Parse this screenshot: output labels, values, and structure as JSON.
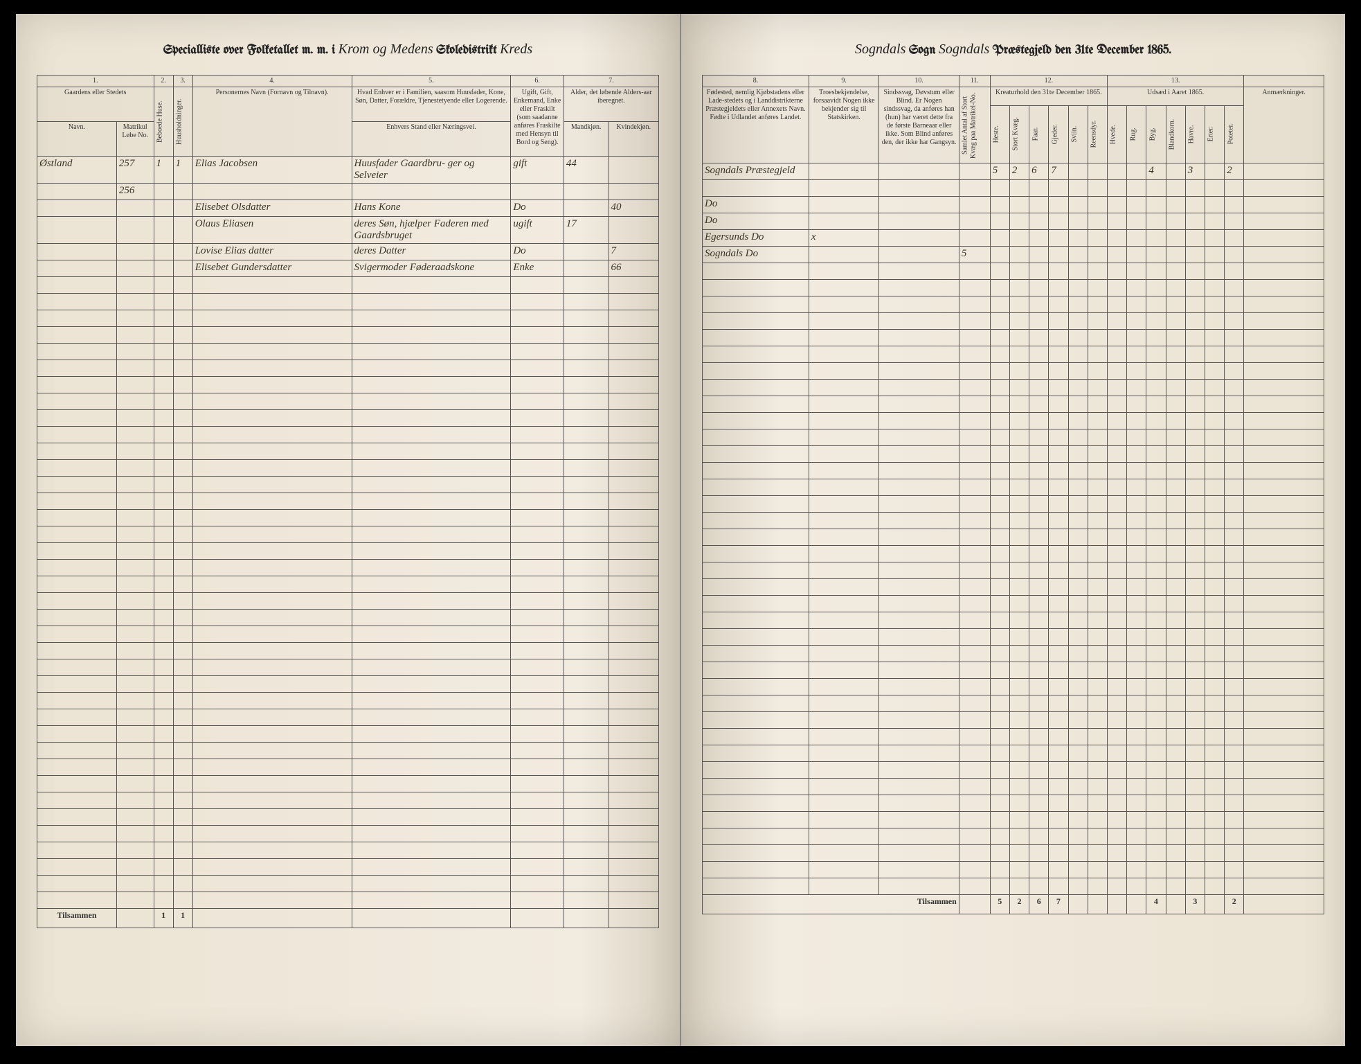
{
  "header": {
    "left_prefix": "Specialliste over Folketallet m. m. i",
    "district_script": "Krom og Medens",
    "district_label": "Skoledistrikt",
    "kreds_script": "Kreds",
    "sogn_script": "Sogndals",
    "sogn_label": "Sogn",
    "prestegjeld_script": "Sogndals",
    "prestegjeld_label": "Præstegjeld den 31te December 1865."
  },
  "columns_left": {
    "nums": [
      "1.",
      "2.",
      "3.",
      "4.",
      "5.",
      "6.",
      "7."
    ],
    "c1a": "Gaardens eller Stedets",
    "c1b": "Navn.",
    "c1c": "Matrikul Løbe No.",
    "c2": "Beboede Huse.",
    "c3": "Huusholdninger.",
    "c4": "Personernes Navn (Fornavn og Tilnavn).",
    "c5a": "Hvad Enhver er i Familien, saasom Huusfader, Kone, Søn, Datter, Forældre, Tjenestetyende eller Logerende.",
    "c5b": "Enhvers Stand eller Næringsvei.",
    "c6a": "Ugift, Gift, Enkemand, Enke eller Fraskilt (som saadanne anføres Fraskilte med Hensyn til Bord og Seng).",
    "c7a": "Alder, det løbende Alders-aar iberegnet.",
    "c7b": "Mandkjøn.",
    "c7c": "Kvindekjøn."
  },
  "columns_right": {
    "nums": [
      "8.",
      "9.",
      "10.",
      "11.",
      "12.",
      "13."
    ],
    "c8": "Fødested, nemlig Kjøbstadens eller Lade-stedets og i Landdistrikterne Præstegjeldets eller Annexets Navn. Fødte i Udlandet anføres Landet.",
    "c9": "Troesbekjendelse, forsaavidt Nogen ikke bekjender sig til Statskirken.",
    "c10": "Sindssvag, Døvstum eller Blind. Er Nogen sindssvag, da anføres han (hun) har været dette fra de første Barneaar eller ikke. Som Blind anføres den, der ikke har Gangsyn.",
    "c11": "Samlet Antal af Stort Kvæg paa Matrikel-No.",
    "c12": "Kreaturhold den 31te December 1865.",
    "c12_sub": [
      "Heste.",
      "Stort Kvæg.",
      "Faar.",
      "Gjeder.",
      "Sviin.",
      "Reensdyr."
    ],
    "c13": "Udsæd i Aaret 1865.",
    "c13_sub": [
      "Hvede.",
      "Rug.",
      "Byg.",
      "Blandkorn.",
      "Havre.",
      "Erter.",
      "Poteter."
    ],
    "anm": "Anmærkninger."
  },
  "rows": [
    {
      "gaard": "Østland",
      "matr": "257",
      "hus": "1",
      "hush": "1",
      "navn": "Elias Jacobsen",
      "familie": "Huusfader Gaardbru-",
      "stand": "ger og Selveier",
      "civil": "gift",
      "m": "44",
      "k": "",
      "fodested": "Sogndals Præstegjeld",
      "c11": "",
      "heste": "5",
      "kvag": "2",
      "faar": "6",
      "gjed": "7",
      "byg": "4",
      "havre": "3",
      "poteter": "2"
    },
    {
      "gaard": "",
      "matr": "256",
      "hus": "",
      "hush": "",
      "navn": "",
      "familie": "",
      "stand": "",
      "civil": "",
      "m": "",
      "k": "",
      "fodested": ""
    },
    {
      "navn": "Elisebet Olsdatter",
      "familie": "Hans Kone",
      "stand": "",
      "civil": "Do",
      "m": "",
      "k": "40",
      "fodested": "Do"
    },
    {
      "navn": "Olaus Eliasen",
      "familie": "deres Søn, hjælper",
      "stand": "Faderen med Gaardsbruget",
      "civil": "ugift",
      "m": "17",
      "k": "",
      "fodested": "Do"
    },
    {
      "navn": "Lovise Elias datter",
      "familie": "deres Datter",
      "stand": "",
      "civil": "Do",
      "m": "",
      "k": "7",
      "fodested": "Egersunds Do",
      "tro": "x"
    },
    {
      "navn": "Elisebet Gundersdatter",
      "familie": "Svigermoder Føderaadskone",
      "stand": "",
      "civil": "Enke",
      "m": "",
      "k": "66",
      "fodested": "Sogndals Do",
      "c11": "5"
    }
  ],
  "footer": {
    "tilsammen": "Tilsammen",
    "hus_sum": "1",
    "hush_sum": "1",
    "heste": "5",
    "kvag": "2",
    "faar": "6",
    "gjed": "7",
    "byg": "4",
    "havre": "3",
    "poteter": "2"
  },
  "empty_rows": 38
}
